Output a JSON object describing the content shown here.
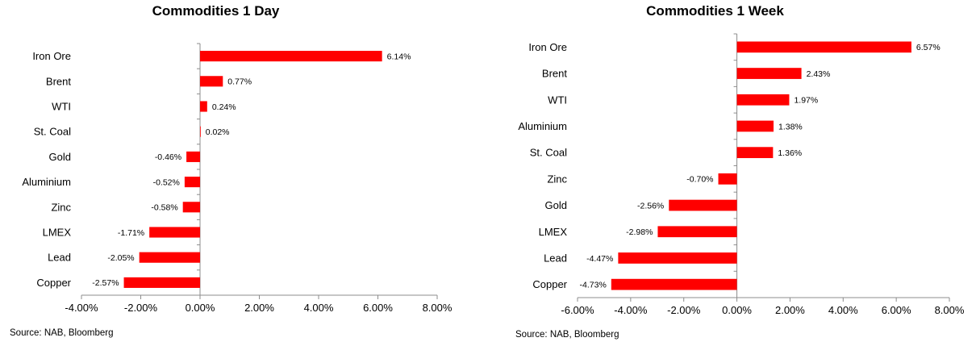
{
  "source_text": "Source: NAB, Bloomberg",
  "chart_data": [
    {
      "type": "bar",
      "orientation": "horizontal",
      "title": "Commodities 1 Day",
      "categories": [
        "Iron Ore",
        "Brent",
        "WTI",
        "St. Coal",
        "Gold",
        "Aluminium",
        "Zinc",
        "LMEX",
        "Lead",
        "Copper"
      ],
      "values": [
        6.14,
        0.77,
        0.24,
        0.02,
        -0.46,
        -0.52,
        -0.58,
        -1.71,
        -2.05,
        -2.57
      ],
      "value_labels": [
        "6.14%",
        "0.77%",
        "0.24%",
        "0.02%",
        "-0.46%",
        "-0.52%",
        "-0.58%",
        "-1.71%",
        "-2.05%",
        "-2.57%"
      ],
      "xlim": [
        -4,
        8
      ],
      "xticks": [
        -4,
        -2,
        0,
        2,
        4,
        6,
        8
      ],
      "xtick_labels": [
        "-4.00%",
        "-2.00%",
        "0.00%",
        "2.00%",
        "4.00%",
        "6.00%",
        "8.00%"
      ],
      "bar_color": "#ff0000",
      "grid": false
    },
    {
      "type": "bar",
      "orientation": "horizontal",
      "title": "Commodities 1 Week",
      "categories": [
        "Iron Ore",
        "Brent",
        "WTI",
        "Aluminium",
        "St. Coal",
        "Zinc",
        "Gold",
        "LMEX",
        "Lead",
        "Copper"
      ],
      "values": [
        6.57,
        2.43,
        1.97,
        1.38,
        1.36,
        -0.7,
        -2.56,
        -2.98,
        -4.47,
        -4.73
      ],
      "value_labels": [
        "6.57%",
        "2.43%",
        "1.97%",
        "1.38%",
        "1.36%",
        "-0.70%",
        "-2.56%",
        "-2.98%",
        "-4.47%",
        "-4.73%"
      ],
      "xlim": [
        -6,
        8
      ],
      "xticks": [
        -6,
        -4,
        -2,
        0,
        2,
        4,
        6,
        8
      ],
      "xtick_labels": [
        "-6.00%",
        "-4.00%",
        "-2.00%",
        "0.00%",
        "2.00%",
        "4.00%",
        "6.00%",
        "8.00%"
      ],
      "bar_color": "#ff0000",
      "grid": false
    }
  ]
}
